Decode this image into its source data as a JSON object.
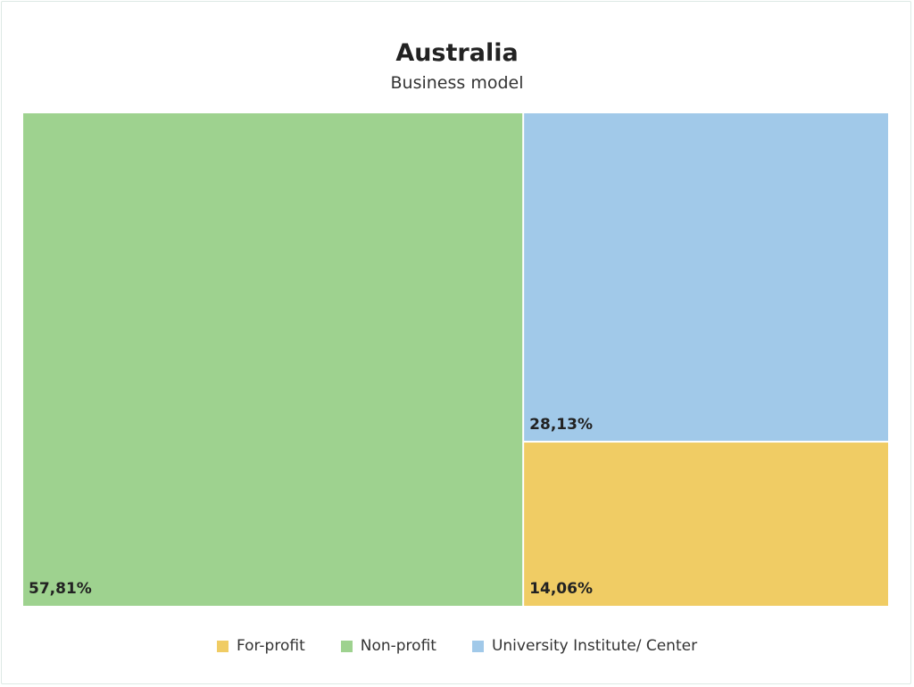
{
  "chart_data": {
    "type": "treemap",
    "title": "Australia",
    "subtitle": "Business model",
    "segments": [
      {
        "name": "Non-profit",
        "value": 57.81,
        "label": "57,81%",
        "color": "#9ed28f"
      },
      {
        "name": "University Institute/ Center",
        "value": 28.13,
        "label": "28,13%",
        "color": "#a1c9e9"
      },
      {
        "name": "For-profit",
        "value": 14.06,
        "label": "14,06%",
        "color": "#f0cc64"
      }
    ],
    "legend": [
      {
        "name": "For-profit",
        "color": "#f0cc64"
      },
      {
        "name": "Non-profit",
        "color": "#9ed28f"
      },
      {
        "name": "University Institute/ Center",
        "color": "#a1c9e9"
      }
    ],
    "legend_position": "bottom"
  }
}
